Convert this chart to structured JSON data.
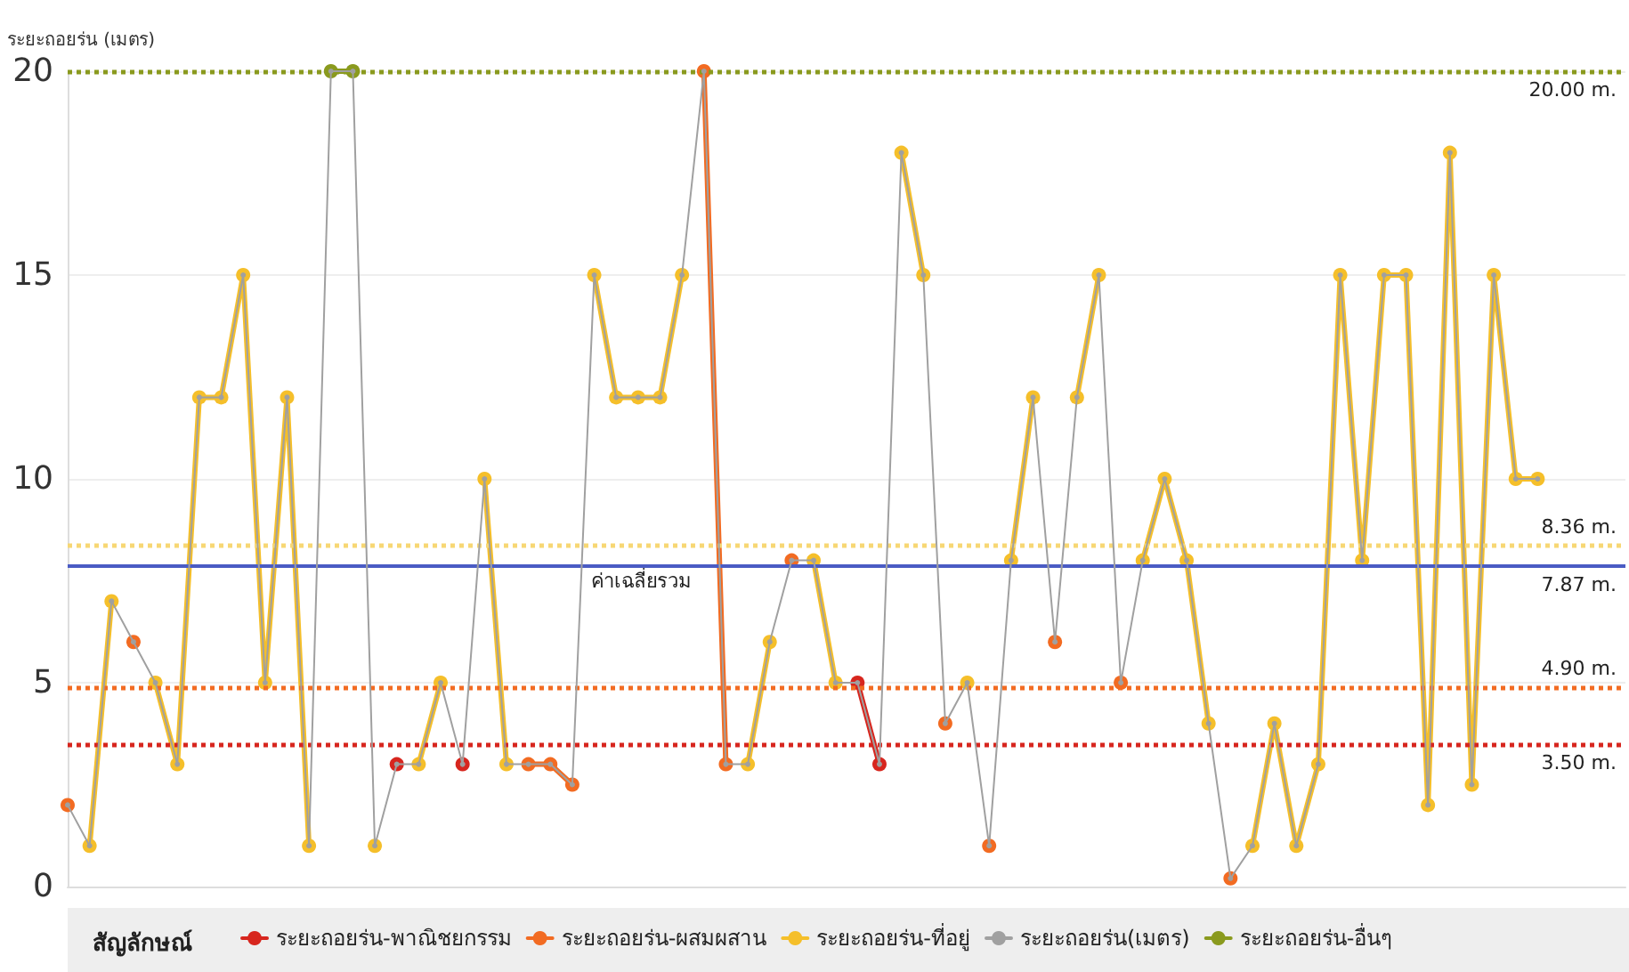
{
  "chart_data": {
    "type": "line",
    "ylabel": "ระยะถอยร่น (เมตร)",
    "legend_title": "สัญลักษณ์",
    "categories": [
      null,
      null,
      null,
      null,
      null,
      null,
      null,
      null,
      null,
      null,
      null,
      null,
      null,
      null,
      null,
      null,
      null,
      null,
      null,
      null,
      null,
      null,
      null,
      null,
      null,
      null,
      null,
      null,
      null,
      null,
      null,
      null,
      null,
      null,
      null,
      null,
      null,
      null,
      null,
      null,
      null,
      null,
      null,
      null,
      null,
      null,
      null,
      null,
      null,
      null,
      null,
      null,
      null,
      null,
      null,
      null,
      null,
      null,
      null,
      null,
      null,
      null,
      null,
      null,
      null,
      null,
      null,
      null,
      null,
      null,
      null,
      null
    ],
    "series": [
      {
        "name": "ระยะถอยร่น-พาณิชยกรรม",
        "color": "#d7261e",
        "values": [
          null,
          null,
          null,
          null,
          null,
          null,
          null,
          null,
          null,
          null,
          null,
          null,
          null,
          null,
          null,
          3,
          null,
          null,
          3,
          null,
          null,
          null,
          null,
          null,
          null,
          null,
          null,
          null,
          null,
          null,
          null,
          null,
          null,
          null,
          null,
          null,
          5,
          3,
          null,
          null,
          null,
          null,
          null,
          null,
          null,
          null,
          null,
          null,
          null,
          null,
          null,
          null,
          null,
          null,
          null,
          null,
          null,
          null,
          null,
          null,
          null,
          null,
          null,
          null,
          null,
          null,
          null,
          null,
          null,
          null,
          null,
          null
        ]
      },
      {
        "name": "ระยะถอยร่น-ผสมผสาน",
        "color": "#f26b22",
        "values": [
          2,
          null,
          null,
          6,
          null,
          null,
          null,
          null,
          null,
          null,
          null,
          null,
          null,
          null,
          null,
          null,
          null,
          null,
          null,
          null,
          null,
          3,
          3,
          2.5,
          null,
          null,
          null,
          null,
          null,
          20,
          3,
          null,
          null,
          8,
          null,
          null,
          null,
          null,
          null,
          null,
          4,
          null,
          1,
          null,
          null,
          6,
          null,
          null,
          5,
          null,
          null,
          null,
          null,
          0.2,
          null,
          null,
          null,
          null,
          null,
          null,
          null,
          null,
          null,
          null,
          null,
          null,
          null,
          null,
          null,
          null,
          null,
          null
        ]
      },
      {
        "name": "ระยะถอยร่น-ที่อยู่",
        "color": "#f5bf2a",
        "values": [
          null,
          1,
          7,
          null,
          5,
          3,
          12,
          12,
          15,
          5,
          12,
          1,
          null,
          null,
          1,
          null,
          3,
          5,
          null,
          10,
          3,
          null,
          null,
          null,
          15,
          12,
          12,
          12,
          15,
          null,
          null,
          3,
          6,
          null,
          8,
          5,
          null,
          null,
          18,
          15,
          null,
          5,
          null,
          8,
          12,
          null,
          12,
          15,
          null,
          8,
          10,
          8,
          4,
          null,
          1,
          4,
          1,
          3,
          15,
          8,
          15,
          15,
          2,
          18,
          2.5,
          15,
          10,
          10,
          null,
          null,
          null,
          null
        ]
      },
      {
        "name": "ระยะถอยร่น(เมตร)",
        "color": "#a0a0a0",
        "values": [
          2,
          1,
          7,
          6,
          5,
          3,
          12,
          12,
          15,
          5,
          12,
          1,
          20,
          20,
          1,
          3,
          3,
          5,
          3,
          10,
          3,
          3,
          3,
          2.5,
          15,
          12,
          12,
          12,
          15,
          20,
          3,
          3,
          6,
          8,
          8,
          5,
          5,
          3,
          18,
          15,
          4,
          5,
          1,
          8,
          12,
          6,
          12,
          15,
          5,
          8,
          10,
          8,
          4,
          0.2,
          1,
          4,
          1,
          3,
          15,
          8,
          15,
          15,
          2,
          18,
          2.5,
          15,
          10,
          10,
          null,
          null,
          null,
          null
        ]
      },
      {
        "name": "ระยะถอยร่น-อื่นๆ",
        "color": "#8a9a1e",
        "values": [
          null,
          null,
          null,
          null,
          null,
          null,
          null,
          null,
          null,
          null,
          null,
          null,
          20,
          20,
          null,
          null,
          null,
          null,
          null,
          null,
          null,
          null,
          null,
          null,
          null,
          null,
          null,
          null,
          null,
          null,
          null,
          null,
          null,
          null,
          null,
          null,
          null,
          null,
          null,
          null,
          null,
          null,
          null,
          null,
          null,
          null,
          null,
          null,
          null,
          null,
          null,
          null,
          null,
          null,
          null,
          null,
          null,
          null,
          null,
          null,
          null,
          null,
          null,
          null,
          null,
          null,
          null,
          null,
          null,
          null,
          null,
          null
        ]
      }
    ],
    "ref_lines": [
      {
        "axis": "y",
        "value": 20,
        "label": "20.00 m.",
        "color": "#8a9a1e",
        "line_style": "dotted"
      },
      {
        "axis": "y",
        "value": 8.36,
        "label": "8.36 m.",
        "color": "#f7d774",
        "line_style": "dotted"
      },
      {
        "axis": "y",
        "value": 7.87,
        "label": "7.87 m.",
        "color": "#4a5cc4",
        "line_style": "solid"
      },
      {
        "axis": "y",
        "value": 4.9,
        "label": "4.90 m.",
        "color": "#f26b22",
        "line_style": "dotted"
      },
      {
        "axis": "y",
        "value": 3.5,
        "label": "3.50 m.",
        "color": "#d7261e",
        "line_style": "dotted"
      }
    ],
    "annotations": [
      {
        "text": "ค่าเฉลี่ยรวม",
        "y": 7.87
      }
    ],
    "ylim": [
      0,
      20
    ],
    "yticks": [
      0,
      5,
      10,
      15,
      20
    ],
    "grid": "y",
    "legend": "bottom",
    "marker": "circle",
    "line_style": "solid",
    "tick_labels": "y"
  }
}
